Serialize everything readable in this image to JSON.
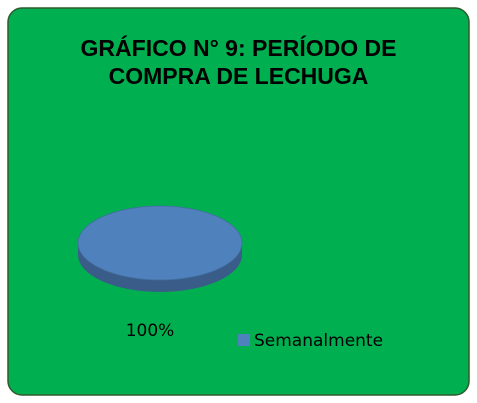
{
  "chart_data": {
    "type": "pie",
    "title": "GRÁFICO N° 9: PERÍODO DE COMPRA DE LECHUGA",
    "categories": [
      "Semanalmente"
    ],
    "values": [
      100
    ],
    "value_labels": [
      "100%"
    ],
    "colors": [
      "#4f81bd"
    ],
    "background": "#00b050",
    "legend": "right"
  }
}
